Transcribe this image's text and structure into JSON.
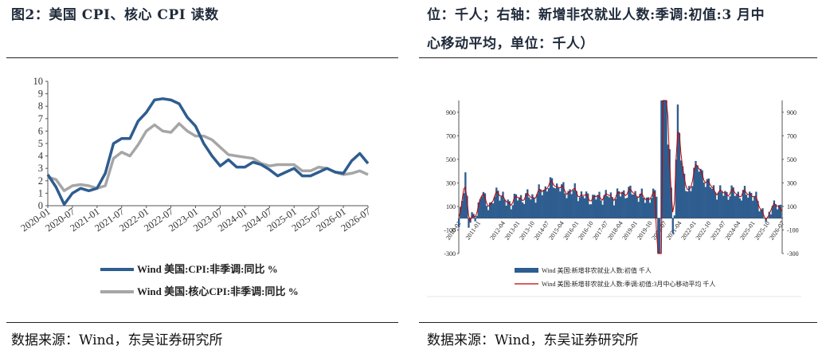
{
  "left": {
    "title": "图2：美国 CPI、核心 CPI 读数",
    "source": "数据来源：Wind，东吴证券研究所"
  },
  "right": {
    "title_line1": "位：千人；右轴：新增非农就业人数:季调:初值:3 月中",
    "title_line2": "心移动平均，单位：千人）",
    "source": "数据来源：Wind，东吴证券研究所"
  },
  "chart_data": [
    {
      "type": "line",
      "ylim": [
        0,
        10
      ],
      "yticks": [
        "0",
        "1",
        "2",
        "3",
        "4",
        "5",
        "6",
        "7",
        "8",
        "9",
        "10"
      ],
      "x_tick_labels": [
        "2020-01",
        "2020-07",
        "2021-01",
        "2021-07",
        "2022-01",
        "2022-07",
        "2023-01",
        "2023-07",
        "2024-01",
        "2024-07",
        "2025-01",
        "2025-07",
        "2026-01",
        "2026-07"
      ],
      "x": [
        "2020-01",
        "2020-03",
        "2020-05",
        "2020-07",
        "2020-09",
        "2020-11",
        "2021-01",
        "2021-03",
        "2021-05",
        "2021-07",
        "2021-09",
        "2021-11",
        "2022-01",
        "2022-03",
        "2022-05",
        "2022-07",
        "2022-09",
        "2022-11",
        "2023-01",
        "2023-03",
        "2023-05",
        "2023-07",
        "2023-09",
        "2023-11",
        "2024-01",
        "2024-03",
        "2024-05",
        "2024-07",
        "2024-09",
        "2024-11",
        "2025-01",
        "2025-03",
        "2025-05",
        "2025-07",
        "2025-09",
        "2025-11",
        "2026-01",
        "2026-03",
        "2026-05",
        "2026-07"
      ],
      "series": [
        {
          "name": "Wind 美国:CPI:非季调:同比 %",
          "color": "#2e5d8f",
          "values": [
            2.5,
            1.5,
            0.1,
            1.0,
            1.4,
            1.2,
            1.4,
            2.6,
            5.0,
            5.4,
            5.4,
            6.8,
            7.5,
            8.5,
            8.6,
            8.5,
            8.2,
            7.1,
            6.4,
            5.0,
            4.0,
            3.2,
            3.7,
            3.1,
            3.1,
            3.5,
            3.3,
            2.9,
            2.4,
            2.7,
            3.0,
            2.4,
            2.4,
            2.7,
            3.0,
            2.7,
            2.6,
            3.6,
            4.2,
            3.4
          ]
        },
        {
          "name": "Wind 美国:核心CPI:非季调:同比 %",
          "color": "#a6a6a6",
          "values": [
            2.3,
            2.1,
            1.2,
            1.6,
            1.7,
            1.6,
            1.4,
            1.6,
            3.8,
            4.3,
            4.0,
            4.9,
            6.0,
            6.5,
            6.0,
            5.9,
            6.6,
            6.0,
            5.6,
            5.6,
            5.3,
            4.7,
            4.1,
            4.0,
            3.9,
            3.8,
            3.4,
            3.2,
            3.3,
            3.3,
            3.3,
            2.8,
            2.8,
            3.1,
            3.0,
            2.7,
            2.5,
            2.6,
            2.8,
            2.5
          ]
        }
      ]
    },
    {
      "type": "bar",
      "ylim": [
        -300,
        1000
      ],
      "yticks": [
        "-300",
        "-100",
        "100",
        "300",
        "500",
        "700",
        "900"
      ],
      "y2ticks": [
        "-300",
        "-100",
        "100",
        "300",
        "500",
        "700",
        "900"
      ],
      "x_tick_labels": [
        "2010-01",
        "2011-01",
        "2012-04",
        "2013-01",
        "2013-10",
        "2014-07",
        "2015-04",
        "2016-01",
        "2016-10",
        "2017-07",
        "2018-04",
        "2019-01",
        "2019-10",
        "2020-07",
        "2021-04",
        "2022-01",
        "2022-10",
        "2023-07",
        "2024-04",
        "2025-01",
        "2025-10",
        "2026-07"
      ],
      "series": [
        {
          "name": "Wind 美国:新增非农就业人数:初值 千人",
          "color": "#2e5d8f"
        },
        {
          "name": "Wind 美国:新增非农就业人数:季调:初值:3月中心移动平均 千人",
          "color": "#c00000"
        }
      ]
    }
  ]
}
